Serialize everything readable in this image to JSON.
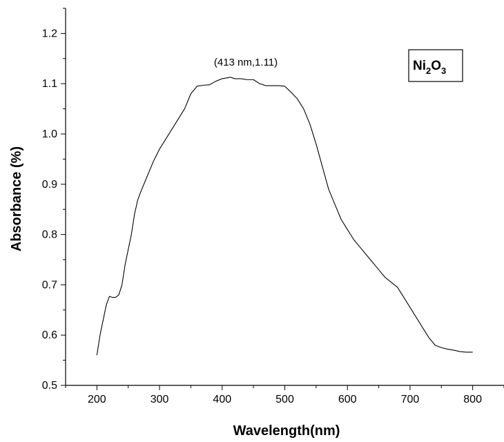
{
  "chart_data": {
    "type": "line",
    "xlabel": "Wavelength(nm)",
    "ylabel": "Absorbance (%)",
    "xlim": [
      150,
      850
    ],
    "ylim": [
      0.5,
      1.25
    ],
    "x_ticks": [
      "200",
      "300",
      "400",
      "500",
      "600",
      "700",
      "800"
    ],
    "y_ticks": [
      "0.5",
      "0.6",
      "0.7",
      "0.8",
      "0.9",
      "1.0",
      "1.1",
      "1.2"
    ],
    "annotation": "(413 nm,1.11)",
    "legend": {
      "base": "Ni",
      "sub1": "2",
      "mid": "O",
      "sub2": "3"
    },
    "series": [
      {
        "x": [
          200,
          205,
          210,
          215,
          220,
          225,
          230,
          235,
          240,
          245,
          250,
          255,
          260,
          265,
          270,
          280,
          290,
          300,
          310,
          320,
          330,
          340,
          350,
          360,
          370,
          380,
          390,
          400,
          410,
          413,
          420,
          430,
          440,
          450,
          460,
          470,
          480,
          490,
          500,
          510,
          520,
          530,
          540,
          550,
          560,
          570,
          580,
          590,
          600,
          610,
          620,
          630,
          640,
          650,
          660,
          670,
          680,
          690,
          700,
          710,
          720,
          730,
          740,
          750,
          760,
          770,
          780,
          790,
          800
        ],
        "values": [
          0.56,
          0.6,
          0.63,
          0.66,
          0.677,
          0.675,
          0.675,
          0.68,
          0.7,
          0.74,
          0.77,
          0.8,
          0.84,
          0.868,
          0.885,
          0.915,
          0.945,
          0.97,
          0.99,
          1.01,
          1.03,
          1.05,
          1.08,
          1.095,
          1.097,
          1.098,
          1.105,
          1.11,
          1.112,
          1.113,
          1.11,
          1.11,
          1.108,
          1.108,
          1.1,
          1.096,
          1.096,
          1.096,
          1.095,
          1.083,
          1.07,
          1.05,
          1.02,
          0.98,
          0.935,
          0.89,
          0.86,
          0.83,
          0.81,
          0.79,
          0.775,
          0.76,
          0.745,
          0.73,
          0.715,
          0.705,
          0.695,
          0.675,
          0.655,
          0.635,
          0.615,
          0.595,
          0.58,
          0.575,
          0.572,
          0.57,
          0.567,
          0.566,
          0.566
        ]
      }
    ]
  }
}
